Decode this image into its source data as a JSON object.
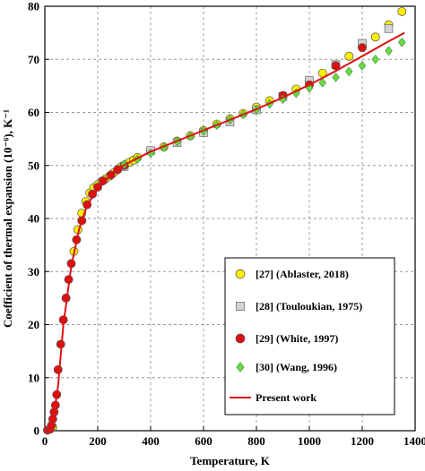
{
  "chart_data": {
    "type": "scatter",
    "xlabel": "Temperature,  K",
    "ylabel": "Coefficient of thermal expansion (10⁻⁶), K⁻¹",
    "xlim": [
      0,
      1400
    ],
    "ylim": [
      0,
      80
    ],
    "xticks": [
      0,
      200,
      400,
      600,
      800,
      1000,
      1200,
      1400
    ],
    "yticks": [
      0,
      10,
      20,
      30,
      40,
      50,
      60,
      70,
      80
    ],
    "grid": "dashed",
    "legend_position": "bottom-right",
    "series": [
      {
        "name": "[27] (Ablaster, 2018)",
        "marker": "circle",
        "color": "#ffee00",
        "points": [
          [
            20,
            0.4
          ],
          [
            30,
            0.7
          ],
          [
            110,
            33.8
          ],
          [
            125,
            37.9
          ],
          [
            140,
            41.0
          ],
          [
            155,
            43.2
          ],
          [
            170,
            44.8
          ],
          [
            185,
            45.8
          ],
          [
            200,
            46.4
          ],
          [
            215,
            47.0
          ],
          [
            230,
            47.5
          ],
          [
            245,
            48.0
          ],
          [
            260,
            48.6
          ],
          [
            275,
            49.2
          ],
          [
            290,
            49.8
          ],
          [
            305,
            50.2
          ],
          [
            320,
            50.6
          ],
          [
            335,
            51.0
          ],
          [
            350,
            51.5
          ],
          [
            400,
            52.7
          ],
          [
            450,
            53.5
          ],
          [
            500,
            54.6
          ],
          [
            550,
            55.6
          ],
          [
            600,
            56.6
          ],
          [
            650,
            57.8
          ],
          [
            700,
            58.8
          ],
          [
            750,
            59.8
          ],
          [
            800,
            61.0
          ],
          [
            850,
            62.2
          ],
          [
            900,
            63.0
          ],
          [
            950,
            64.4
          ],
          [
            1000,
            65.8
          ],
          [
            1050,
            67.4
          ],
          [
            1100,
            68.8
          ],
          [
            1150,
            70.6
          ],
          [
            1200,
            72.3
          ],
          [
            1250,
            74.2
          ],
          [
            1300,
            76.5
          ],
          [
            1350,
            79.0
          ]
        ]
      },
      {
        "name": "[28] (Touloukian, 1975)",
        "marker": "square",
        "color": "#d3d3d3",
        "points": [
          [
            300,
            49.8
          ],
          [
            400,
            52.8
          ],
          [
            500,
            54.3
          ],
          [
            600,
            56.2
          ],
          [
            700,
            58.2
          ],
          [
            800,
            60.5
          ],
          [
            900,
            63.0
          ],
          [
            1000,
            66.0
          ],
          [
            1100,
            69.0
          ],
          [
            1200,
            73.0
          ],
          [
            1300,
            75.8
          ]
        ]
      },
      {
        "name": "[29] (White, 1997)",
        "marker": "circle",
        "color": "#dd1111",
        "points": [
          [
            10,
            0.1
          ],
          [
            20,
            0.3
          ],
          [
            25,
            1.0
          ],
          [
            30,
            2.2
          ],
          [
            35,
            3.5
          ],
          [
            40,
            4.8
          ],
          [
            45,
            6.8
          ],
          [
            50,
            11.5
          ],
          [
            60,
            16.3
          ],
          [
            70,
            20.9
          ],
          [
            80,
            25.0
          ],
          [
            90,
            28.5
          ],
          [
            100,
            31.5
          ],
          [
            120,
            36.0
          ],
          [
            140,
            39.6
          ],
          [
            160,
            42.6
          ],
          [
            180,
            44.6
          ],
          [
            200,
            45.9
          ],
          [
            220,
            47.1
          ],
          [
            250,
            48.2
          ],
          [
            275,
            49.2
          ],
          [
            300,
            50.0
          ],
          [
            900,
            63.2
          ],
          [
            1000,
            65.2
          ],
          [
            1100,
            68.8
          ],
          [
            1200,
            72.2
          ]
        ]
      },
      {
        "name": "[30] (Wang, 1996)",
        "marker": "diamond",
        "color": "#66dd44",
        "points": [
          [
            300,
            50.2
          ],
          [
            350,
            51.2
          ],
          [
            400,
            52.3
          ],
          [
            450,
            53.4
          ],
          [
            500,
            54.5
          ],
          [
            550,
            55.5
          ],
          [
            600,
            56.5
          ],
          [
            650,
            57.6
          ],
          [
            700,
            58.6
          ],
          [
            750,
            59.6
          ],
          [
            800,
            60.5
          ],
          [
            850,
            61.6
          ],
          [
            900,
            62.5
          ],
          [
            950,
            63.6
          ],
          [
            1000,
            64.6
          ],
          [
            1050,
            65.6
          ],
          [
            1100,
            66.6
          ],
          [
            1150,
            67.7
          ],
          [
            1200,
            68.8
          ],
          [
            1250,
            70.0
          ],
          [
            1300,
            71.6
          ],
          [
            1350,
            73.2
          ]
        ]
      },
      {
        "name": "Present work",
        "marker": "line",
        "color": "#dd1111",
        "points": [
          [
            10,
            0
          ],
          [
            30,
            1.5
          ],
          [
            50,
            8.5
          ],
          [
            70,
            20
          ],
          [
            100,
            31
          ],
          [
            130,
            38
          ],
          [
            160,
            42.5
          ],
          [
            200,
            45.6
          ],
          [
            250,
            48.3
          ],
          [
            300,
            50.1
          ],
          [
            400,
            52.6
          ],
          [
            500,
            54.6
          ],
          [
            600,
            56.6
          ],
          [
            700,
            58.6
          ],
          [
            800,
            60.6
          ],
          [
            900,
            62.8
          ],
          [
            1000,
            65.2
          ],
          [
            1100,
            67.8
          ],
          [
            1200,
            70.6
          ],
          [
            1300,
            73.4
          ],
          [
            1360,
            75.0
          ]
        ]
      }
    ]
  }
}
